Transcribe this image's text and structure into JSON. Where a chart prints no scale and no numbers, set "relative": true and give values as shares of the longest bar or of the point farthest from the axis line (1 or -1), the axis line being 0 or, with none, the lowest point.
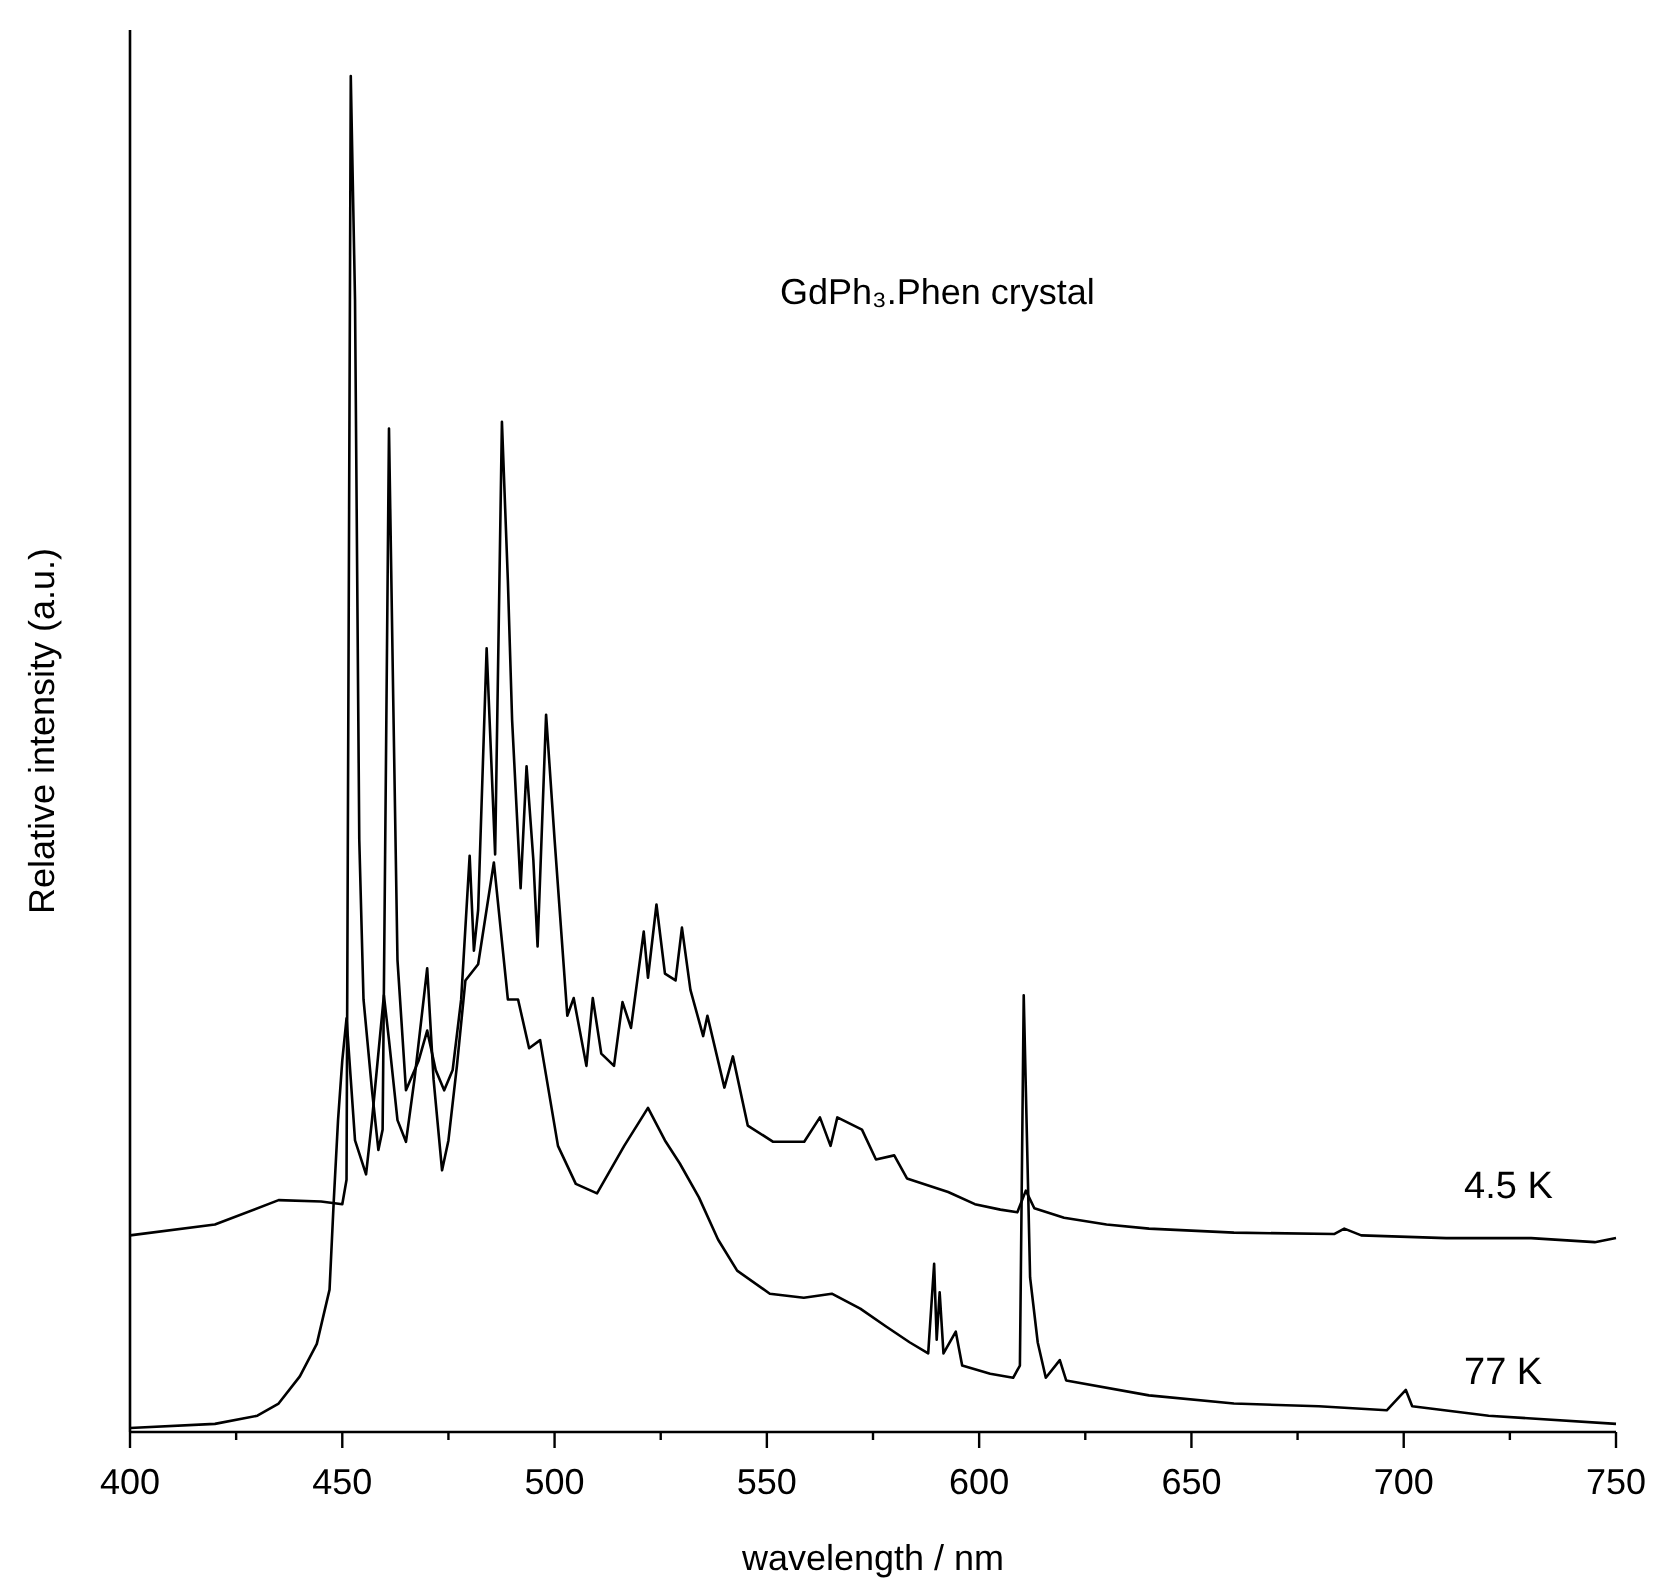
{
  "chart_data": {
    "type": "line",
    "title": "GdPh₃.Phen crystal",
    "xlabel": "wavelength / nm",
    "ylabel": "Relative intensity (a.u.)",
    "relative": true,
    "legend": false,
    "marker": "none",
    "line_style": "solid",
    "grid": false,
    "xlim": [
      400,
      750
    ],
    "xticks": [
      400,
      {
        "value": 425,
        "label": null
      },
      450,
      {
        "value": 475,
        "label": null
      },
      500,
      {
        "value": 525,
        "label": null
      },
      550,
      {
        "value": 575,
        "label": null
      },
      600,
      {
        "value": 625,
        "label": null
      },
      650,
      {
        "value": 675,
        "label": null
      },
      700,
      {
        "value": 725,
        "label": null
      },
      750
    ],
    "series": [
      {
        "name": "4.5 K",
        "color": "#000000",
        "x": [
          400,
          420,
          435,
          445,
          450,
          451,
          452,
          453,
          454,
          455,
          457,
          458.5,
          459.5,
          461,
          462,
          463,
          465,
          468,
          470,
          472,
          474,
          476,
          478,
          480,
          481,
          482,
          484,
          486,
          487.6,
          489,
          490,
          492,
          493.4,
          495,
          496,
          498,
          500,
          503,
          504.5,
          507.5,
          509,
          511,
          514,
          516,
          518,
          521,
          522,
          524,
          526,
          528.5,
          530,
          532,
          535,
          536,
          540,
          542,
          545.5,
          551.5,
          558.8,
          562.5,
          565,
          566.6,
          572.4,
          575.7,
          580,
          583,
          592.7,
          599,
          605,
          609,
          611,
          613,
          620,
          630,
          640,
          660,
          683.6,
          686,
          690,
          710,
          730,
          745,
          750
        ],
        "values": [
          0.145,
          0.153,
          0.171,
          0.17,
          0.168,
          0.186,
          1,
          0.835,
          0.437,
          0.319,
          0.252,
          0.208,
          0.223,
          0.74,
          0.54,
          0.348,
          0.252,
          0.274,
          0.296,
          0.267,
          0.252,
          0.267,
          0.319,
          0.425,
          0.355,
          0.385,
          0.578,
          0.426,
          0.745,
          0.628,
          0.525,
          0.401,
          0.491,
          0.422,
          0.358,
          0.529,
          0.437,
          0.307,
          0.32,
          0.27,
          0.32,
          0.279,
          0.27,
          0.317,
          0.298,
          0.369,
          0.335,
          0.389,
          0.338,
          0.333,
          0.372,
          0.326,
          0.292,
          0.307,
          0.254,
          0.277,
          0.226,
          0.214,
          0.214,
          0.232,
          0.211,
          0.232,
          0.223,
          0.201,
          0.204,
          0.187,
          0.177,
          0.168,
          0.164,
          0.162,
          0.178,
          0.165,
          0.158,
          0.153,
          0.15,
          0.147,
          0.146,
          0.15,
          0.145,
          0.143,
          0.143,
          0.14,
          0.143
        ]
      },
      {
        "name": "77 K",
        "color": "#000000",
        "x": [
          400,
          420,
          430,
          435,
          440,
          444,
          447,
          448,
          449,
          450,
          451,
          452,
          453,
          455.6,
          457,
          459.8,
          461,
          463,
          465,
          467,
          470,
          471.5,
          473.5,
          475,
          477,
          479,
          482,
          485.7,
          489,
          491.4,
          494,
          496.6,
          500.8,
          505,
          510,
          516.4,
          522,
          526,
          529.5,
          534,
          538.5,
          543,
          550.7,
          558.7,
          565.3,
          572,
          578,
          583.7,
          588,
          589.4,
          590,
          590.7,
          591.6,
          594.5,
          596,
          602.6,
          608,
          609.6,
          610.5,
          612,
          613.8,
          615.7,
          619,
          620.5,
          640,
          660,
          680,
          696,
          700.5,
          702,
          720,
          750
        ],
        "values": [
          0.003,
          0.006,
          0.012,
          0.021,
          0.041,
          0.065,
          0.105,
          0.171,
          0.23,
          0.274,
          0.305,
          0.26,
          0.215,
          0.19,
          0.23,
          0.322,
          0.289,
          0.23,
          0.214,
          0.26,
          0.342,
          0.26,
          0.193,
          0.215,
          0.27,
          0.333,
          0.345,
          0.42,
          0.319,
          0.319,
          0.283,
          0.289,
          0.211,
          0.183,
          0.176,
          0.211,
          0.239,
          0.215,
          0.198,
          0.173,
          0.142,
          0.119,
          0.102,
          0.099,
          0.102,
          0.091,
          0.078,
          0.066,
          0.058,
          0.124,
          0.068,
          0.103,
          0.058,
          0.074,
          0.049,
          0.043,
          0.04,
          0.049,
          0.322,
          0.114,
          0.066,
          0.04,
          0.053,
          0.038,
          0.027,
          0.021,
          0.019,
          0.016,
          0.031,
          0.019,
          0.012,
          0.006
        ]
      }
    ]
  }
}
